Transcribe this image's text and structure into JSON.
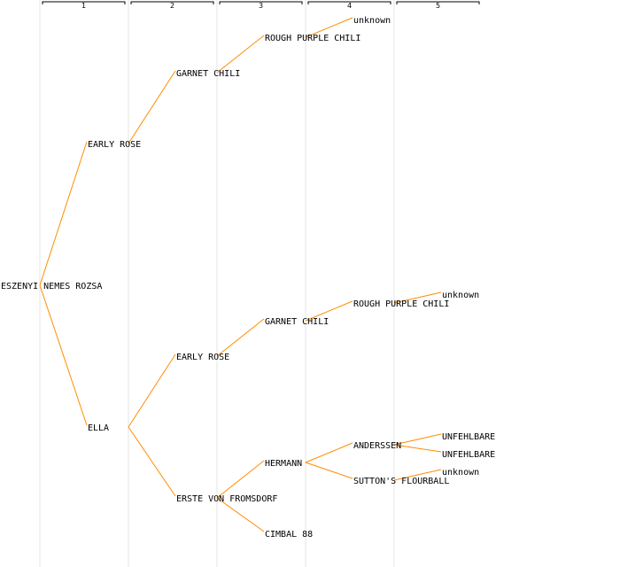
{
  "diagram": {
    "colors": {
      "edge": "#ff8c00",
      "column_line": "#e6e6e6",
      "bracket": "#000000",
      "text": "#000000"
    },
    "generations": [
      "1",
      "2",
      "3",
      "4",
      "5"
    ],
    "nodes": [
      {
        "id": "n0",
        "label": "ESZENYI NEMES ROZSA",
        "gen": 0
      },
      {
        "id": "n1",
        "label": "EARLY ROSE",
        "gen": 1,
        "parent": "n0"
      },
      {
        "id": "n2",
        "label": "GARNET CHILI",
        "gen": 2,
        "parent": "n1"
      },
      {
        "id": "n3",
        "label": "ROUGH PURPLE CHILI",
        "gen": 3,
        "parent": "n2"
      },
      {
        "id": "n4",
        "label": "unknown",
        "gen": 4,
        "parent": "n3"
      },
      {
        "id": "n5",
        "label": "ELLA",
        "gen": 1,
        "parent": "n0"
      },
      {
        "id": "n6",
        "label": "EARLY ROSE",
        "gen": 2,
        "parent": "n5"
      },
      {
        "id": "n7",
        "label": "GARNET CHILI",
        "gen": 3,
        "parent": "n6"
      },
      {
        "id": "n8",
        "label": "ROUGH PURPLE CHILI",
        "gen": 4,
        "parent": "n7"
      },
      {
        "id": "n9",
        "label": "unknown",
        "gen": 5,
        "parent": "n8"
      },
      {
        "id": "n10",
        "label": "ERSTE VON FROMSDORF",
        "gen": 2,
        "parent": "n5"
      },
      {
        "id": "n11",
        "label": "HERMANN",
        "gen": 3,
        "parent": "n10"
      },
      {
        "id": "n12",
        "label": "ANDERSSEN",
        "gen": 4,
        "parent": "n11"
      },
      {
        "id": "n13",
        "label": "UNFEHLBARE",
        "gen": 5,
        "parent": "n12"
      },
      {
        "id": "n14",
        "label": "UNFEHLBARE",
        "gen": 5,
        "parent": "n12"
      },
      {
        "id": "n15",
        "label": "SUTTON'S FLOURBALL",
        "gen": 4,
        "parent": "n11"
      },
      {
        "id": "n16",
        "label": "unknown",
        "gen": 5,
        "parent": "n15"
      },
      {
        "id": "n17",
        "label": "CIMBAL 88",
        "gen": 3,
        "parent": "n10"
      }
    ]
  }
}
